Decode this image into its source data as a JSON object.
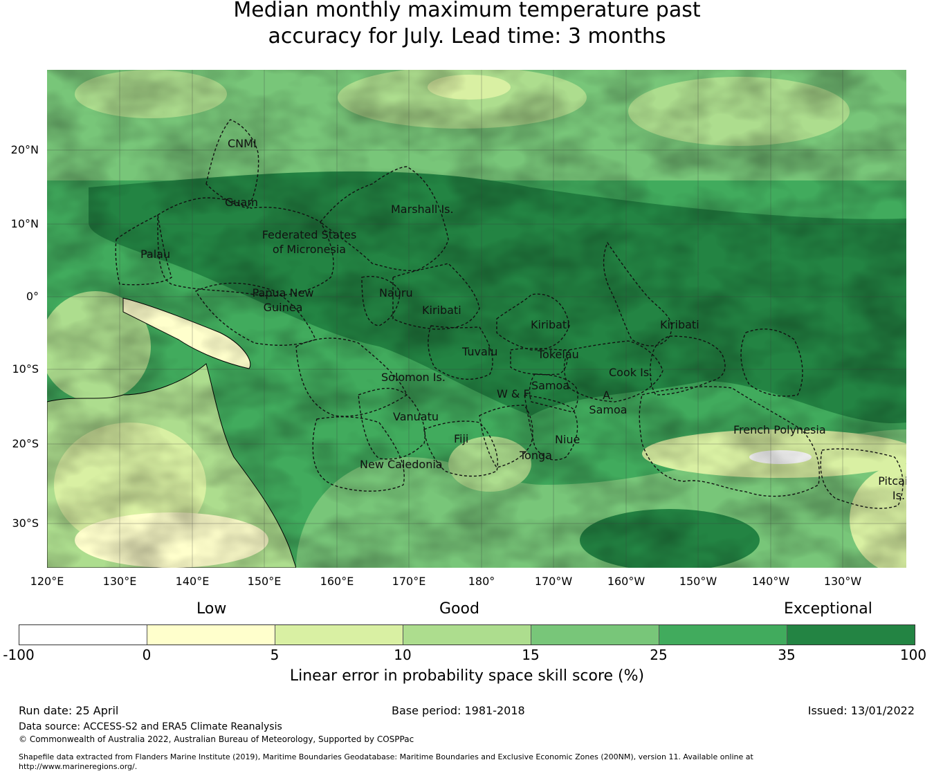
{
  "title": {
    "line1": "Median monthly maximum temperature past",
    "line2": "accuracy for July. Lead time: 3 months"
  },
  "map": {
    "lat_ticks": [
      "20°N",
      "10°N",
      "0°",
      "10°S",
      "20°S",
      "30°S"
    ],
    "lon_ticks": [
      "120°E",
      "130°E",
      "140°E",
      "150°E",
      "160°E",
      "170°E",
      "180°",
      "170°W",
      "160°W",
      "150°W",
      "140°W",
      "130°W"
    ],
    "regions": [
      {
        "name": "CNMI",
        "lines": [
          "CNMI"
        ]
      },
      {
        "name": "Guam",
        "lines": [
          "Guam"
        ]
      },
      {
        "name": "Marshall Is.",
        "lines": [
          "Marshall Is."
        ]
      },
      {
        "name": "Federated States of Micronesia",
        "lines": [
          "Federated States",
          "of Micronesia"
        ]
      },
      {
        "name": "Palau",
        "lines": [
          "Palau"
        ]
      },
      {
        "name": "Papua New Guinea",
        "lines": [
          "Papua New",
          "Guinea"
        ]
      },
      {
        "name": "Nauru",
        "lines": [
          "Nauru"
        ]
      },
      {
        "name": "Kiribati",
        "lines": [
          "Kiribati"
        ]
      },
      {
        "name": "Kiribati",
        "lines": [
          "Kiribati"
        ]
      },
      {
        "name": "Kiribati",
        "lines": [
          "Kiribati"
        ]
      },
      {
        "name": "Tuvalu",
        "lines": [
          "Tuvalu"
        ]
      },
      {
        "name": "Tokelau",
        "lines": [
          "Tokelau"
        ]
      },
      {
        "name": "Solomon Is.",
        "lines": [
          "Solomon Is."
        ]
      },
      {
        "name": "Cook Is.",
        "lines": [
          "Cook Is."
        ]
      },
      {
        "name": "Samoa",
        "lines": [
          "Samoa"
        ]
      },
      {
        "name": "W & F",
        "lines": [
          "W & F"
        ]
      },
      {
        "name": "A. Samoa",
        "lines": [
          "A.",
          "Samoa"
        ]
      },
      {
        "name": "Vanuatu",
        "lines": [
          "Vanuatu"
        ]
      },
      {
        "name": "Fiji",
        "lines": [
          "Fiji"
        ]
      },
      {
        "name": "Niue",
        "lines": [
          "Niue"
        ]
      },
      {
        "name": "Tonga",
        "lines": [
          "Tonga"
        ]
      },
      {
        "name": "New Caledonia",
        "lines": [
          "New Caledonia"
        ]
      },
      {
        "name": "French Polynesia",
        "lines": [
          "French Polynesia"
        ]
      },
      {
        "name": "Pitcairn Is.",
        "lines": [
          "Pitcairn",
          "Is."
        ]
      }
    ]
  },
  "legend": {
    "categories": [
      "Low",
      "Good",
      "Exceptional"
    ],
    "ticks": [
      "-100",
      "0",
      "5",
      "10",
      "15",
      "25",
      "35",
      "100"
    ],
    "colors": [
      "#ffffff",
      "#ffffcc",
      "#d9f0a3",
      "#addd8e",
      "#78c679",
      "#41ab5d",
      "#238443"
    ],
    "label": "Linear error in probability space skill score (%)"
  },
  "footer": {
    "run_date": "Run date: 25 April",
    "base_period": "Base period: 1981-2018",
    "issued": "Issued: 13/01/2022",
    "data_source": "Data source: ACCESS-S2 and ERA5 Climate Reanalysis",
    "copyright": "© Commonwealth of Australia 2022, Australian Bureau of Meteorology, Supported by COSPPac",
    "shapefile_line1": "Shapefile data extracted from Flanders Marine Institute (2019), Maritime Boundaries Geodatabase: Maritime Boundaries and Exclusive Economic Zones (200NM), version 11. Available online at",
    "shapefile_line2": "http://www.marineregions.org/."
  }
}
